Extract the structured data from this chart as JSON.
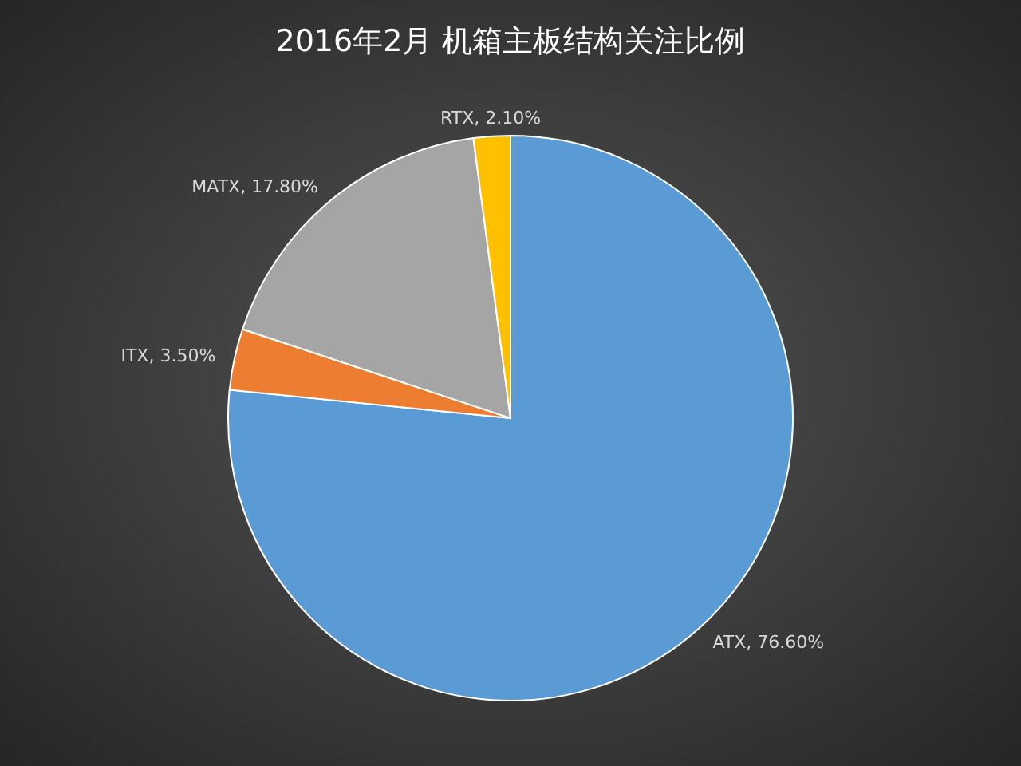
{
  "chart_data": {
    "type": "pie",
    "title": "2016年2月 机箱主板结构关注比例",
    "categories": [
      "ATX",
      "ITX",
      "MATX",
      "RTX"
    ],
    "values": [
      76.6,
      3.5,
      17.8,
      2.1
    ],
    "value_labels": [
      "76.60%",
      "3.50%",
      "17.80%",
      "2.10%"
    ],
    "colors": [
      "#5b9bd5",
      "#ed7d31",
      "#a5a5a5",
      "#ffc000"
    ]
  }
}
